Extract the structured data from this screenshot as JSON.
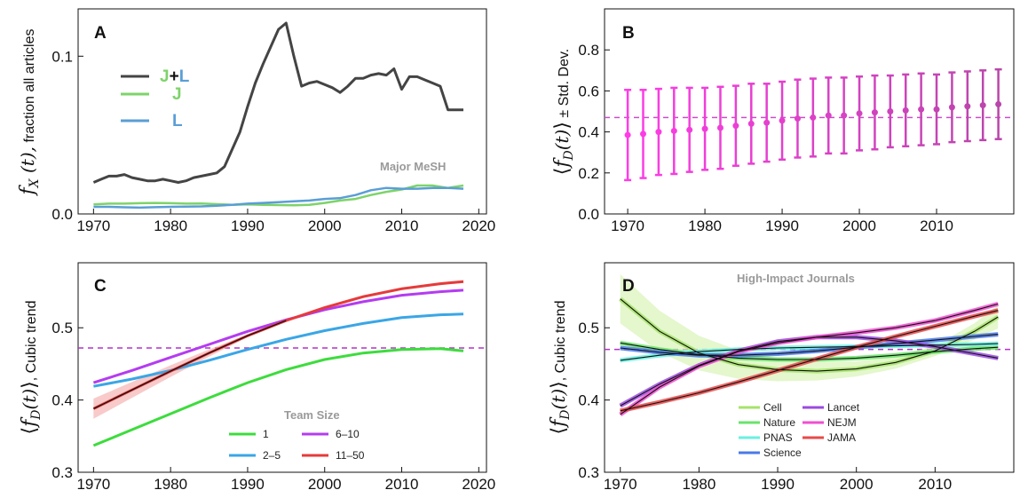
{
  "chart_data": [
    {
      "panel": "A",
      "type": "line",
      "ylabel_math": "f",
      "ylabel_sub": "X",
      "ylabel_arg": "(t),",
      "ylabel_text": "fraction all articles",
      "annotation": "Major MeSH",
      "xlim": [
        1968,
        2021
      ],
      "ylim": [
        0,
        0.13
      ],
      "xticks": [
        1970,
        1980,
        1990,
        2000,
        2010,
        2020
      ],
      "yticks": [
        0.0,
        0.1
      ],
      "legend": {
        "placement": "upper-left",
        "entries": [
          {
            "j": "J",
            "plus": "+",
            "l": "L",
            "color": "#444444"
          },
          {
            "j": "J",
            "color": "#7ed36a"
          },
          {
            "l": "L",
            "color": "#5a9ed6"
          }
        ]
      },
      "series": [
        {
          "key": "J+L",
          "color": "#444444",
          "x": [
            1970,
            1971,
            1972,
            1973,
            1974,
            1975,
            1976,
            1977,
            1978,
            1979,
            1980,
            1981,
            1982,
            1983,
            1984,
            1985,
            1986,
            1987,
            1988,
            1989,
            1990,
            1991,
            1992,
            1993,
            1994,
            1995,
            1996,
            1997,
            1998,
            1999,
            2000,
            2001,
            2002,
            2003,
            2004,
            2005,
            2006,
            2007,
            2008,
            2009,
            2010,
            2011,
            2012,
            2013,
            2014,
            2015,
            2016,
            2017,
            2018
          ],
          "y": [
            0.02,
            0.022,
            0.024,
            0.024,
            0.025,
            0.023,
            0.022,
            0.021,
            0.021,
            0.022,
            0.021,
            0.02,
            0.021,
            0.023,
            0.024,
            0.025,
            0.026,
            0.03,
            0.041,
            0.052,
            0.068,
            0.083,
            0.095,
            0.106,
            0.117,
            0.121,
            0.1,
            0.081,
            0.083,
            0.084,
            0.082,
            0.08,
            0.077,
            0.081,
            0.086,
            0.086,
            0.088,
            0.089,
            0.088,
            0.092,
            0.079,
            0.087,
            0.087,
            0.085,
            0.083,
            0.081,
            0.066,
            0.066,
            0.066
          ]
        },
        {
          "key": "J",
          "color": "#7ed36a",
          "x": [
            1970,
            1972,
            1974,
            1976,
            1978,
            1980,
            1982,
            1984,
            1986,
            1988,
            1990,
            1992,
            1994,
            1996,
            1998,
            2000,
            2002,
            2004,
            2006,
            2008,
            2010,
            2012,
            2014,
            2016,
            2018
          ],
          "y": [
            0.006,
            0.0065,
            0.0065,
            0.0068,
            0.007,
            0.0068,
            0.0065,
            0.0066,
            0.0062,
            0.0058,
            0.006,
            0.0058,
            0.0056,
            0.0055,
            0.0058,
            0.007,
            0.0085,
            0.0095,
            0.012,
            0.014,
            0.0155,
            0.018,
            0.018,
            0.0165,
            0.018
          ]
        },
        {
          "key": "L",
          "color": "#5a9ed6",
          "x": [
            1970,
            1972,
            1974,
            1976,
            1978,
            1980,
            1982,
            1984,
            1986,
            1988,
            1990,
            1992,
            1994,
            1996,
            1998,
            2000,
            2002,
            2004,
            2006,
            2008,
            2010,
            2012,
            2014,
            2016,
            2018
          ],
          "y": [
            0.0045,
            0.0045,
            0.0042,
            0.004,
            0.0043,
            0.0045,
            0.0046,
            0.0048,
            0.0052,
            0.0058,
            0.0065,
            0.007,
            0.0075,
            0.008,
            0.0085,
            0.0095,
            0.01,
            0.012,
            0.015,
            0.0165,
            0.016,
            0.016,
            0.0165,
            0.0165,
            0.016
          ]
        }
      ]
    },
    {
      "panel": "B",
      "type": "scatter",
      "ylabel_text": "± Std. Dev.",
      "xlim": [
        1967,
        2020
      ],
      "ylim": [
        0,
        1.0
      ],
      "xticks": [
        1970,
        1980,
        1990,
        2000,
        2010
      ],
      "yticks": [
        0.0,
        0.2,
        0.4,
        0.6,
        0.8
      ],
      "hline": 0.47,
      "x": [
        1970,
        1972,
        1974,
        1976,
        1978,
        1980,
        1982,
        1984,
        1986,
        1988,
        1990,
        1992,
        1994,
        1996,
        1998,
        2000,
        2002,
        2004,
        2006,
        2008,
        2010,
        2012,
        2014,
        2016,
        2018
      ],
      "mean": [
        0.385,
        0.39,
        0.4,
        0.405,
        0.41,
        0.415,
        0.42,
        0.43,
        0.44,
        0.445,
        0.455,
        0.465,
        0.47,
        0.48,
        0.48,
        0.49,
        0.495,
        0.5,
        0.505,
        0.51,
        0.51,
        0.52,
        0.525,
        0.53,
        0.535
      ],
      "sd": [
        0.22,
        0.215,
        0.21,
        0.21,
        0.205,
        0.2,
        0.2,
        0.195,
        0.195,
        0.19,
        0.19,
        0.19,
        0.19,
        0.185,
        0.185,
        0.18,
        0.18,
        0.175,
        0.175,
        0.175,
        0.17,
        0.17,
        0.17,
        0.17,
        0.17
      ]
    },
    {
      "panel": "C",
      "type": "line",
      "ylabel_text": ", Cubic trend",
      "legend_title": "Team Size",
      "xlim": [
        1968,
        2021
      ],
      "ylim": [
        0.3,
        0.59
      ],
      "xticks": [
        1970,
        1980,
        1990,
        2000,
        2010,
        2020
      ],
      "yticks": [
        0.3,
        0.4,
        0.5
      ],
      "hline": 0.472,
      "legend_entries": [
        {
          "label": "1",
          "color": "#3ddc3d"
        },
        {
          "label": "6–10",
          "color": "#b43cf0"
        },
        {
          "label": "2–5",
          "color": "#3aa6e6"
        },
        {
          "label": "11–50",
          "color": "#e63a3a"
        }
      ],
      "series": [
        {
          "key": "1",
          "color": "#3ddc3d",
          "x": [
            1970,
            1975,
            1980,
            1985,
            1990,
            1995,
            2000,
            2005,
            2010,
            2015,
            2018
          ],
          "y": [
            0.337,
            0.359,
            0.381,
            0.403,
            0.424,
            0.442,
            0.456,
            0.465,
            0.47,
            0.471,
            0.468
          ]
        },
        {
          "key": "2-5",
          "color": "#3aa6e6",
          "x": [
            1970,
            1975,
            1980,
            1985,
            1990,
            1995,
            2000,
            2005,
            2010,
            2015,
            2018
          ],
          "y": [
            0.419,
            0.429,
            0.441,
            0.455,
            0.47,
            0.484,
            0.496,
            0.506,
            0.514,
            0.518,
            0.519
          ]
        },
        {
          "key": "6-10",
          "color": "#b43cf0",
          "x": [
            1970,
            1975,
            1980,
            1985,
            1990,
            1995,
            2000,
            2005,
            2010,
            2015,
            2018
          ],
          "y": [
            0.424,
            0.441,
            0.459,
            0.477,
            0.495,
            0.511,
            0.525,
            0.536,
            0.545,
            0.55,
            0.552
          ]
        },
        {
          "key": "11-50",
          "color": "#e63a3a",
          "x": [
            1970,
            1975,
            1980,
            1985,
            1990,
            1995,
            2000,
            2005,
            2010,
            2015,
            2018
          ],
          "y": [
            0.388,
            0.414,
            0.44,
            0.465,
            0.489,
            0.51,
            0.528,
            0.543,
            0.554,
            0.561,
            0.564
          ]
        }
      ]
    },
    {
      "panel": "D",
      "type": "line",
      "ylabel_text": ", Cubic trend",
      "title": "High-Impact Journals",
      "xlim": [
        1968,
        2020
      ],
      "ylim": [
        0.3,
        0.59
      ],
      "xticks": [
        1970,
        1980,
        1990,
        2000,
        2010
      ],
      "yticks": [
        0.3,
        0.4,
        0.5
      ],
      "hline": 0.47,
      "legend_entries": [
        {
          "label": "Cell",
          "color": "#a6e36a"
        },
        {
          "label": "Lancet",
          "color": "#9a4be0"
        },
        {
          "label": "Nature",
          "color": "#6ae36a"
        },
        {
          "label": "NEJM",
          "color": "#f04fd0"
        },
        {
          "label": "PNAS",
          "color": "#6af0e0"
        },
        {
          "label": "JAMA",
          "color": "#e84a4a"
        },
        {
          "label": "Science",
          "color": "#4a7ae8"
        }
      ],
      "series": [
        {
          "key": "Cell",
          "color": "#a6e36a",
          "x": [
            1970,
            1975,
            1980,
            1985,
            1990,
            1995,
            2000,
            2005,
            2010,
            2015,
            2018
          ],
          "y": [
            0.54,
            0.495,
            0.465,
            0.449,
            0.442,
            0.44,
            0.443,
            0.452,
            0.468,
            0.495,
            0.515
          ]
        },
        {
          "key": "Nature",
          "color": "#6ae36a",
          "x": [
            1970,
            1975,
            1980,
            1985,
            1990,
            1995,
            2000,
            2005,
            2010,
            2015,
            2018
          ],
          "y": [
            0.479,
            0.47,
            0.463,
            0.458,
            0.456,
            0.456,
            0.458,
            0.462,
            0.467,
            0.471,
            0.473
          ]
        },
        {
          "key": "PNAS",
          "color": "#6af0e0",
          "x": [
            1970,
            1975,
            1980,
            1985,
            1990,
            1995,
            2000,
            2005,
            2010,
            2015,
            2018
          ],
          "y": [
            0.455,
            0.462,
            0.467,
            0.47,
            0.472,
            0.473,
            0.474,
            0.475,
            0.476,
            0.477,
            0.478
          ]
        },
        {
          "key": "Science",
          "color": "#4a7ae8",
          "x": [
            1970,
            1975,
            1980,
            1985,
            1990,
            1995,
            2000,
            2005,
            2010,
            2015,
            2018
          ],
          "y": [
            0.472,
            0.466,
            0.462,
            0.462,
            0.464,
            0.468,
            0.473,
            0.478,
            0.483,
            0.488,
            0.491
          ]
        },
        {
          "key": "Lancet",
          "color": "#9a4be0",
          "x": [
            1970,
            1975,
            1980,
            1985,
            1990,
            1995,
            2000,
            2005,
            2010,
            2015,
            2018
          ],
          "y": [
            0.392,
            0.422,
            0.448,
            0.468,
            0.481,
            0.487,
            0.487,
            0.482,
            0.474,
            0.464,
            0.458
          ]
        },
        {
          "key": "NEJM",
          "color": "#f04fd0",
          "x": [
            1970,
            1975,
            1980,
            1985,
            1990,
            1995,
            2000,
            2005,
            2010,
            2015,
            2018
          ],
          "y": [
            0.38,
            0.418,
            0.447,
            0.467,
            0.479,
            0.487,
            0.493,
            0.5,
            0.51,
            0.524,
            0.533
          ]
        },
        {
          "key": "JAMA",
          "color": "#e84a4a",
          "x": [
            1970,
            1975,
            1980,
            1985,
            1990,
            1995,
            2000,
            2005,
            2010,
            2015,
            2018
          ],
          "y": [
            0.385,
            0.397,
            0.41,
            0.425,
            0.441,
            0.457,
            0.473,
            0.488,
            0.502,
            0.516,
            0.524
          ]
        }
      ]
    }
  ]
}
